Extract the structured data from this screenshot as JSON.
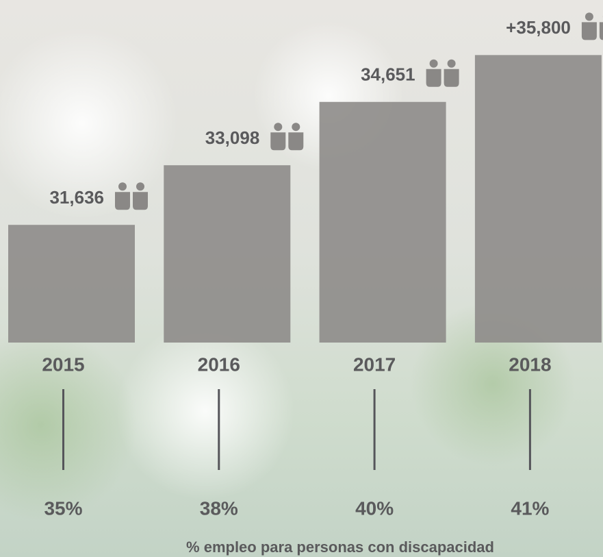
{
  "chart_data": {
    "type": "bar",
    "categories": [
      "2015",
      "2016",
      "2017",
      "2018"
    ],
    "values": [
      31636,
      33098,
      34651,
      35800
    ],
    "value_labels": [
      "31,636",
      "33,098",
      "34,651",
      "+35,800"
    ],
    "color": "#8f8d8b",
    "ylim": [
      28750,
      37150
    ],
    "employment_rate": {
      "title": "% empleo para personas con discapacidad",
      "values": [
        35,
        38,
        40,
        41
      ],
      "value_labels": [
        "35%",
        "38%",
        "40%",
        "41%"
      ]
    }
  }
}
